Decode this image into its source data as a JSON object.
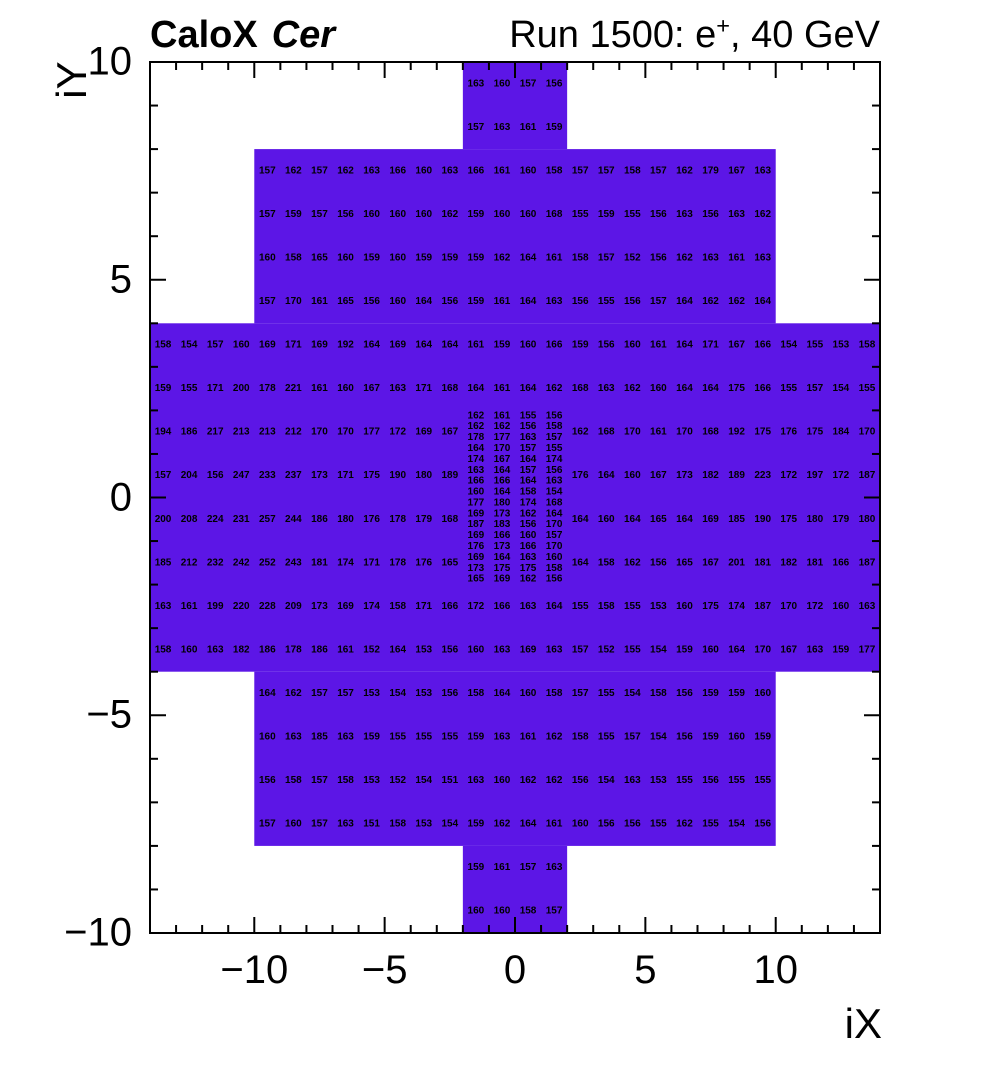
{
  "header": {
    "left_bold": "CaloX",
    "left_italic": "Cer",
    "right_prefix": "Run 1500: e",
    "right_sup": "+",
    "right_suffix": ", 40 GeV"
  },
  "axes": {
    "x_title": "iX",
    "y_title": "iY",
    "x_tick_values": [
      -10,
      -5,
      0,
      5,
      10
    ],
    "x_tick_labels": [
      "−10",
      "−5",
      "0",
      "5",
      "10"
    ],
    "y_tick_values": [
      10,
      5,
      0,
      -5,
      -10
    ],
    "y_tick_labels": [
      "10",
      "5",
      "0",
      "−5",
      "−10"
    ]
  },
  "chart_data": {
    "type": "heatmap",
    "xlabel": "iX",
    "ylabel": "iY",
    "xlim": [
      -14,
      14
    ],
    "ylim": [
      -10,
      10
    ],
    "grid": false,
    "cell_color": "#5c16e6",
    "value_color": "#000000",
    "frame_color": "#000000",
    "regions": [
      {
        "x0": -2,
        "x1": 2,
        "y0": 8,
        "y1": 10
      },
      {
        "x0": -10,
        "x1": 10,
        "y0": 4,
        "y1": 8
      },
      {
        "x0": -14,
        "x1": 14,
        "y0": -4,
        "y1": 4
      },
      {
        "x0": -10,
        "x1": 10,
        "y0": -8,
        "y1": -4
      },
      {
        "x0": -2,
        "x1": 2,
        "y0": -10,
        "y1": -8
      }
    ],
    "rows": [
      {
        "y": 9.5,
        "x_start": -2,
        "values": [
          163,
          160,
          157,
          156
        ]
      },
      {
        "y": 8.5,
        "x_start": -2,
        "values": [
          157,
          163,
          161,
          159
        ]
      },
      {
        "y": 7.5,
        "x_start": -10,
        "values": [
          157,
          162,
          157,
          162,
          163,
          166,
          160,
          163,
          166,
          161,
          160,
          158,
          157,
          157,
          158,
          157,
          162,
          179,
          167,
          163
        ]
      },
      {
        "y": 6.5,
        "x_start": -10,
        "values": [
          157,
          159,
          157,
          156,
          160,
          160,
          160,
          162,
          159,
          160,
          160,
          168,
          155,
          159,
          155,
          156,
          163,
          156,
          163,
          162
        ]
      },
      {
        "y": 5.5,
        "x_start": -10,
        "values": [
          160,
          158,
          165,
          160,
          159,
          160,
          159,
          159,
          159,
          162,
          164,
          161,
          158,
          157,
          152,
          156,
          162,
          163,
          161,
          163
        ]
      },
      {
        "y": 4.5,
        "x_start": -10,
        "values": [
          157,
          170,
          161,
          165,
          156,
          160,
          164,
          156,
          159,
          161,
          164,
          163,
          156,
          155,
          156,
          157,
          164,
          162,
          162,
          164
        ]
      },
      {
        "y": 3.5,
        "x_start": -14,
        "values": [
          158,
          154,
          157,
          160,
          169,
          171,
          169,
          192,
          164,
          169,
          164,
          164,
          161,
          159,
          160,
          166,
          159,
          156,
          160,
          161,
          164,
          171,
          167,
          166,
          154,
          155,
          153,
          158
        ]
      },
      {
        "y": 2.5,
        "x_start": -14,
        "values": [
          159,
          155,
          171,
          200,
          178,
          221,
          161,
          160,
          167,
          163,
          171,
          168,
          164,
          161,
          164,
          162,
          168,
          163,
          162,
          160,
          164,
          164,
          175,
          166,
          155,
          157,
          154,
          155
        ]
      },
      {
        "y": 1.5,
        "x_start": -14,
        "values": [
          194,
          186,
          217,
          213,
          213,
          212,
          170,
          170,
          177,
          172,
          169,
          167
        ]
      },
      {
        "y": 1.5,
        "x_start": 2,
        "values": [
          162,
          168,
          170,
          161,
          170,
          168,
          192,
          175,
          176,
          175,
          184,
          170
        ]
      },
      {
        "y": 0.5,
        "x_start": -14,
        "values": [
          157,
          204,
          156,
          247,
          233,
          237,
          173,
          171,
          175,
          190,
          180,
          189
        ]
      },
      {
        "y": 0.5,
        "x_start": 2,
        "values": [
          176,
          164,
          160,
          167,
          173,
          182,
          189,
          223,
          172,
          197,
          172,
          187
        ]
      },
      {
        "y": -0.5,
        "x_start": -14,
        "values": [
          200,
          208,
          224,
          231,
          257,
          244,
          186,
          180,
          176,
          178,
          179,
          168
        ]
      },
      {
        "y": -0.5,
        "x_start": 2,
        "values": [
          164,
          160,
          164,
          165,
          164,
          169,
          185,
          190,
          175,
          180,
          179,
          180
        ]
      },
      {
        "y": -1.5,
        "x_start": -14,
        "values": [
          185,
          212,
          232,
          242,
          252,
          243,
          181,
          174,
          171,
          178,
          176,
          165
        ]
      },
      {
        "y": -1.5,
        "x_start": 2,
        "values": [
          164,
          158,
          162,
          156,
          165,
          167,
          201,
          181,
          182,
          181,
          166,
          187
        ]
      },
      {
        "y": -2.5,
        "x_start": -14,
        "values": [
          163,
          161,
          199,
          220,
          228,
          209,
          173,
          169,
          174,
          158,
          171,
          166,
          172,
          166,
          163,
          164,
          155,
          158,
          155,
          153,
          160,
          175,
          174,
          187,
          170,
          172,
          160,
          163
        ]
      },
      {
        "y": -3.5,
        "x_start": -14,
        "values": [
          158,
          160,
          163,
          182,
          186,
          178,
          186,
          161,
          152,
          164,
          153,
          156,
          160,
          163,
          169,
          163,
          157,
          152,
          155,
          154,
          159,
          160,
          164,
          170,
          167,
          163,
          159,
          177
        ]
      },
      {
        "y": -4.5,
        "x_start": -10,
        "values": [
          164,
          162,
          157,
          157,
          153,
          154,
          153,
          156,
          158,
          164,
          160,
          158,
          157,
          155,
          154,
          158,
          156,
          159,
          159,
          160
        ]
      },
      {
        "y": -5.5,
        "x_start": -10,
        "values": [
          160,
          163,
          185,
          163,
          159,
          155,
          155,
          155,
          159,
          163,
          161,
          162,
          158,
          155,
          157,
          154,
          156,
          159,
          160,
          159
        ]
      },
      {
        "y": -6.5,
        "x_start": -10,
        "values": [
          156,
          158,
          157,
          158,
          153,
          152,
          154,
          151,
          163,
          160,
          162,
          162,
          156,
          154,
          163,
          153,
          155,
          156,
          155,
          155
        ]
      },
      {
        "y": -7.5,
        "x_start": -10,
        "values": [
          157,
          160,
          157,
          163,
          151,
          158,
          153,
          154,
          159,
          162,
          164,
          161,
          160,
          156,
          156,
          155,
          162,
          155,
          154,
          156
        ]
      },
      {
        "y": -8.5,
        "x_start": -2,
        "values": [
          159,
          161,
          157,
          163
        ]
      },
      {
        "y": -9.5,
        "x_start": -2,
        "values": [
          160,
          160,
          158,
          157
        ]
      }
    ],
    "fine_region": {
      "x_start": -2,
      "col_width": 1,
      "y_top": 2,
      "row_height": 0.25,
      "rows": [
        [
          162,
          161,
          155,
          156
        ],
        [
          162,
          162,
          156,
          158
        ],
        [
          178,
          177,
          163,
          157
        ],
        [
          164,
          170,
          157,
          155
        ],
        [
          174,
          167,
          164,
          174
        ],
        [
          163,
          164,
          157,
          156
        ],
        [
          166,
          166,
          164,
          163
        ],
        [
          160,
          164,
          158,
          154
        ],
        [
          177,
          180,
          174,
          168
        ],
        [
          169,
          173,
          162,
          164
        ],
        [
          187,
          183,
          156,
          170
        ],
        [
          169,
          166,
          160,
          157
        ],
        [
          176,
          173,
          166,
          170
        ],
        [
          169,
          164,
          163,
          160
        ],
        [
          173,
          175,
          175,
          158
        ],
        [
          165,
          169,
          162,
          156
        ]
      ]
    }
  },
  "layout_meta": {
    "ticks": {
      "minor_len": 8,
      "major_len": 16
    }
  }
}
